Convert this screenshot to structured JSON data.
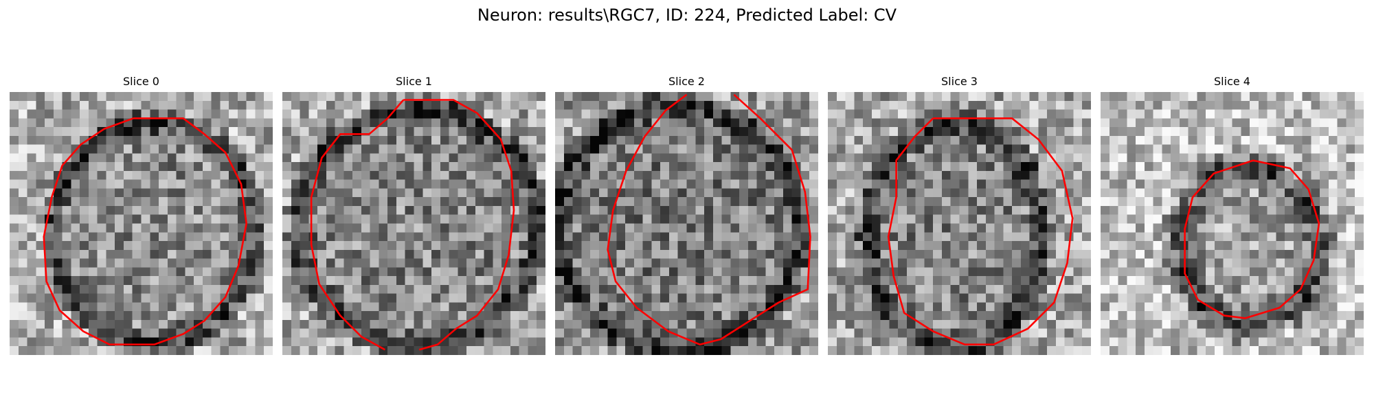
{
  "figure": {
    "title": "Neuron: results\\RGC7, ID: 224, Predicted Label: CV"
  },
  "colors": {
    "contour": "#ff0000",
    "background": "#ffffff"
  },
  "slices": [
    {
      "title": "Slice 0"
    },
    {
      "title": "Slice 1"
    },
    {
      "title": "Slice 2"
    },
    {
      "title": "Slice 3"
    },
    {
      "title": "Slice 4"
    }
  ]
}
